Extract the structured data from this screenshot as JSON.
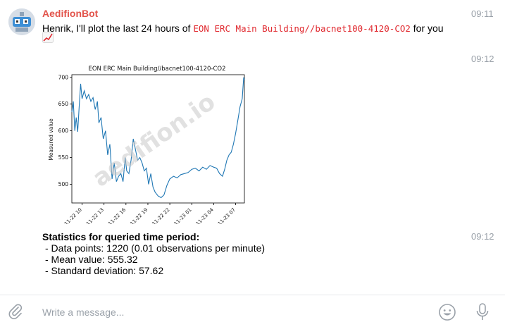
{
  "message1": {
    "sender": "AedifionBot",
    "time": "09:11",
    "text_prefix": "Henrik, I'll plot the last 24 hours of ",
    "datapoint": "EON ERC Main Building//bacnet100-4120-CO2",
    "text_suffix": " for you",
    "emoji_icon": "chart-increasing-icon"
  },
  "message2": {
    "time": "09:12"
  },
  "message3": {
    "time": "09:12",
    "heading": "Statistics for queried time period:",
    "lines": [
      "- Data points: 1220 (0.01 observations per minute)",
      "- Mean value: 555.32",
      "- Standard deviation: 57.62"
    ]
  },
  "composer": {
    "placeholder": "Write a message..."
  },
  "watermark": "aedifion.io",
  "chart_data": {
    "type": "line",
    "title": "EON ERC Main Building//bacnet100-4120-CO2",
    "xlabel": "",
    "ylabel": "Measured value",
    "ylim": [
      465,
      705
    ],
    "yticks": [
      500,
      550,
      600,
      650,
      700
    ],
    "x_tick_labels": [
      "11-22 10",
      "11-22 13",
      "11-22 16",
      "11-22 19",
      "11-22 22",
      "11-23 01",
      "11-23 04",
      "11-23 07"
    ],
    "x_ticks_hours": [
      10,
      13,
      16,
      19,
      22,
      25,
      28,
      31
    ],
    "xlim_hours": [
      8.6,
      32.2
    ],
    "series": [
      {
        "color": "#1f77b4",
        "x_hours": [
          8.6,
          8.8,
          9.0,
          9.2,
          9.4,
          9.6,
          9.8,
          10.0,
          10.3,
          10.6,
          10.9,
          11.2,
          11.5,
          11.8,
          12.1,
          12.3,
          12.6,
          12.9,
          13.2,
          13.5,
          13.8,
          14.1,
          14.4,
          14.7,
          15.0,
          15.3,
          15.6,
          15.9,
          16.1,
          16.4,
          16.7,
          17.0,
          17.3,
          17.6,
          17.9,
          18.2,
          18.5,
          18.8,
          19.1,
          19.4,
          19.7,
          20.0,
          20.4,
          20.8,
          21.2,
          21.6,
          22.0,
          22.5,
          23.0,
          23.5,
          24.0,
          24.5,
          25.0,
          25.5,
          26.0,
          26.5,
          27.0,
          27.5,
          28.0,
          28.4,
          28.8,
          29.2,
          29.5,
          29.8,
          30.1,
          30.4,
          30.7,
          31.0,
          31.3,
          31.6,
          31.9,
          32.1,
          32.2
        ],
        "y": [
          635,
          655,
          600,
          625,
          598,
          645,
          688,
          660,
          675,
          660,
          668,
          655,
          662,
          640,
          655,
          615,
          625,
          585,
          600,
          555,
          575,
          510,
          540,
          505,
          515,
          520,
          505,
          550,
          525,
          520,
          545,
          585,
          565,
          545,
          550,
          540,
          525,
          530,
          500,
          520,
          495,
          485,
          478,
          475,
          480,
          498,
          510,
          515,
          512,
          518,
          520,
          522,
          528,
          530,
          525,
          532,
          528,
          535,
          532,
          530,
          520,
          515,
          528,
          545,
          555,
          560,
          575,
          595,
          620,
          645,
          660,
          700,
          695
        ]
      }
    ],
    "grid": false
  }
}
